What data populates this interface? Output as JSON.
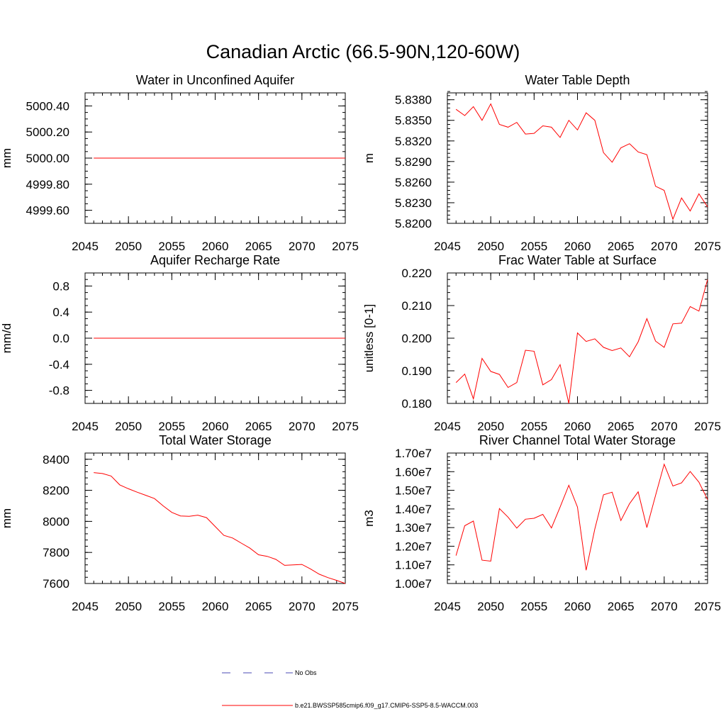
{
  "title": "Canadian Arctic (66.5-90N,120-60W)",
  "colors": {
    "model": "#ff0000",
    "obs": "#4b4bb4",
    "axis": "#000000"
  },
  "legend": [
    {
      "label": "No Obs",
      "style": "dashed",
      "color": "#4b4bb4"
    },
    {
      "label": "b.e21.BWSSP585cmip6.f09_g17.CMIP6-SSP5-8.5-WACCM.003",
      "style": "solid",
      "color": "#ff0000"
    }
  ],
  "chart_data": [
    {
      "type": "line",
      "title": "Water in Unconfined Aquifer",
      "ylabel": "mm",
      "xlim": [
        2045,
        2075
      ],
      "ylim": [
        4999.5,
        5000.5
      ],
      "xticks": [
        2045,
        2050,
        2055,
        2060,
        2065,
        2070,
        2075
      ],
      "xtick_labels": [
        "2045",
        "2050",
        "2055",
        "2060",
        "2065",
        "2070",
        "2075"
      ],
      "yticks": [
        4999.6,
        4999.8,
        5000.0,
        5000.2,
        5000.4
      ],
      "ytick_labels": [
        "4999.60",
        "4999.80",
        "5000.00",
        "5000.20",
        "5000.40"
      ],
      "yminor": 0.05,
      "x": [
        2046,
        2047,
        2048,
        2049,
        2050,
        2051,
        2052,
        2053,
        2054,
        2055,
        2056,
        2057,
        2058,
        2059,
        2060,
        2061,
        2062,
        2063,
        2064,
        2065,
        2066,
        2067,
        2068,
        2069,
        2070,
        2071,
        2072,
        2073,
        2074,
        2075
      ],
      "y": [
        5000,
        5000,
        5000,
        5000,
        5000,
        5000,
        5000,
        5000,
        5000,
        5000,
        5000,
        5000,
        5000,
        5000,
        5000,
        5000,
        5000,
        5000,
        5000,
        5000,
        5000,
        5000,
        5000,
        5000,
        5000,
        5000,
        5000,
        5000,
        5000,
        5000
      ]
    },
    {
      "type": "line",
      "title": "Water Table Depth",
      "ylabel": "m",
      "xlim": [
        2045,
        2075
      ],
      "ylim": [
        5.82,
        5.839
      ],
      "xticks": [
        2045,
        2050,
        2055,
        2060,
        2065,
        2070,
        2075
      ],
      "xtick_labels": [
        "2045",
        "2050",
        "2055",
        "2060",
        "2065",
        "2070",
        "2075"
      ],
      "yticks": [
        5.82,
        5.823,
        5.826,
        5.829,
        5.832,
        5.835,
        5.838
      ],
      "ytick_labels": [
        "5.8200",
        "5.8230",
        "5.8260",
        "5.8290",
        "5.8320",
        "5.8350",
        "5.8380"
      ],
      "yminor": 0.0006,
      "x": [
        2046,
        2047,
        2048,
        2049,
        2050,
        2051,
        2052,
        2053,
        2054,
        2055,
        2056,
        2057,
        2058,
        2059,
        2060,
        2061,
        2062,
        2063,
        2064,
        2065,
        2066,
        2067,
        2068,
        2069,
        2070,
        2071,
        2072,
        2073,
        2074,
        2075
      ],
      "y": [
        5.8366,
        5.8357,
        5.837,
        5.835,
        5.8374,
        5.8344,
        5.834,
        5.8347,
        5.833,
        5.8331,
        5.8342,
        5.834,
        5.8325,
        5.835,
        5.8336,
        5.8361,
        5.835,
        5.8303,
        5.8289,
        5.831,
        5.8316,
        5.8304,
        5.83,
        5.8254,
        5.8248,
        5.8206,
        5.8237,
        5.8218,
        5.8243,
        5.8224
      ]
    },
    {
      "type": "line",
      "title": "Aquifer Recharge Rate",
      "ylabel": "mm/d",
      "xlim": [
        2045,
        2075
      ],
      "ylim": [
        -1.0,
        1.0
      ],
      "xticks": [
        2045,
        2050,
        2055,
        2060,
        2065,
        2070,
        2075
      ],
      "xtick_labels": [
        "2045",
        "2050",
        "2055",
        "2060",
        "2065",
        "2070",
        "2075"
      ],
      "yticks": [
        -0.8,
        -0.4,
        0.0,
        0.4,
        0.8
      ],
      "ytick_labels": [
        "-0.8",
        "-0.4",
        "0.0",
        "0.4",
        "0.8"
      ],
      "yminor": 0.1,
      "x": [
        2046,
        2047,
        2048,
        2049,
        2050,
        2051,
        2052,
        2053,
        2054,
        2055,
        2056,
        2057,
        2058,
        2059,
        2060,
        2061,
        2062,
        2063,
        2064,
        2065,
        2066,
        2067,
        2068,
        2069,
        2070,
        2071,
        2072,
        2073,
        2074,
        2075
      ],
      "y": [
        0,
        0,
        0,
        0,
        0,
        0,
        0,
        0,
        0,
        0,
        0,
        0,
        0,
        0,
        0,
        0,
        0,
        0,
        0,
        0,
        0,
        0,
        0,
        0,
        0,
        0,
        0,
        0,
        0,
        0
      ]
    },
    {
      "type": "line",
      "title": "Frac Water Table at Surface",
      "ylabel": "unitless [0-1]",
      "xlim": [
        2045,
        2075
      ],
      "ylim": [
        0.18,
        0.22
      ],
      "xticks": [
        2045,
        2050,
        2055,
        2060,
        2065,
        2070,
        2075
      ],
      "xtick_labels": [
        "2045",
        "2050",
        "2055",
        "2060",
        "2065",
        "2070",
        "2075"
      ],
      "yticks": [
        0.18,
        0.19,
        0.2,
        0.21,
        0.22
      ],
      "ytick_labels": [
        "0.180",
        "0.190",
        "0.200",
        "0.210",
        "0.220"
      ],
      "yminor": 0.002,
      "x": [
        2046,
        2047,
        2048,
        2049,
        2050,
        2051,
        2052,
        2053,
        2054,
        2055,
        2056,
        2057,
        2058,
        2059,
        2060,
        2061,
        2062,
        2063,
        2064,
        2065,
        2066,
        2067,
        2068,
        2069,
        2070,
        2071,
        2072,
        2073,
        2074,
        2075
      ],
      "y": [
        0.1864,
        0.189,
        0.1814,
        0.1938,
        0.1898,
        0.1889,
        0.1849,
        0.1864,
        0.1963,
        0.196,
        0.1857,
        0.1873,
        0.1919,
        0.18,
        0.2016,
        0.199,
        0.1998,
        0.1972,
        0.1962,
        0.197,
        0.1943,
        0.1989,
        0.206,
        0.1991,
        0.1972,
        0.2044,
        0.2046,
        0.2097,
        0.2083,
        0.218
      ]
    },
    {
      "type": "line",
      "title": "Total Water Storage",
      "ylabel": "mm",
      "xlim": [
        2045,
        2075
      ],
      "ylim": [
        7600,
        8440
      ],
      "xticks": [
        2045,
        2050,
        2055,
        2060,
        2065,
        2070,
        2075
      ],
      "xtick_labels": [
        "2045",
        "2050",
        "2055",
        "2060",
        "2065",
        "2070",
        "2075"
      ],
      "yticks": [
        7600,
        7800,
        8000,
        8200,
        8400
      ],
      "ytick_labels": [
        "7600",
        "7800",
        "8000",
        "8200",
        "8400"
      ],
      "yminor": 40,
      "x": [
        2046,
        2047,
        2048,
        2049,
        2050,
        2051,
        2052,
        2053,
        2054,
        2055,
        2056,
        2057,
        2058,
        2059,
        2060,
        2061,
        2062,
        2063,
        2064,
        2065,
        2066,
        2067,
        2068,
        2069,
        2070,
        2071,
        2072,
        2073,
        2074,
        2075
      ],
      "y": [
        8314,
        8308,
        8292,
        8235,
        8210,
        8188,
        8168,
        8147,
        8100,
        8058,
        8035,
        8033,
        8040,
        8024,
        7967,
        7910,
        7893,
        7860,
        7828,
        7785,
        7775,
        7755,
        7717,
        7720,
        7723,
        7693,
        7660,
        7638,
        7620,
        7600
      ]
    },
    {
      "type": "line",
      "title": "River Channel Total Water Storage",
      "ylabel": "m3",
      "xlim": [
        2045,
        2075
      ],
      "ylim": [
        10000000,
        17000000
      ],
      "xticks": [
        2045,
        2050,
        2055,
        2060,
        2065,
        2070,
        2075
      ],
      "xtick_labels": [
        "2045",
        "2050",
        "2055",
        "2060",
        "2065",
        "2070",
        "2075"
      ],
      "yticks": [
        10000000,
        11000000,
        12000000,
        13000000,
        14000000,
        15000000,
        16000000,
        17000000
      ],
      "ytick_labels": [
        "1.00e7",
        "1.10e7",
        "1.20e7",
        "1.30e7",
        "1.40e7",
        "1.50e7",
        "1.60e7",
        "1.70e7"
      ],
      "yminor": 200000,
      "x": [
        2046,
        2047,
        2048,
        2049,
        2050,
        2051,
        2052,
        2053,
        2054,
        2055,
        2056,
        2057,
        2058,
        2059,
        2060,
        2061,
        2062,
        2063,
        2064,
        2065,
        2066,
        2067,
        2068,
        2069,
        2070,
        2071,
        2072,
        2073,
        2074,
        2075
      ],
      "y": [
        11500000,
        13100000,
        13350000,
        11250000,
        11200000,
        14020000,
        13560000,
        12970000,
        13450000,
        13500000,
        13710000,
        12980000,
        14100000,
        15270000,
        14100000,
        10710000,
        12930000,
        14760000,
        14900000,
        13380000,
        14280000,
        14920000,
        13000000,
        14720000,
        16400000,
        15230000,
        15400000,
        16010000,
        15440000,
        14500000
      ]
    }
  ]
}
